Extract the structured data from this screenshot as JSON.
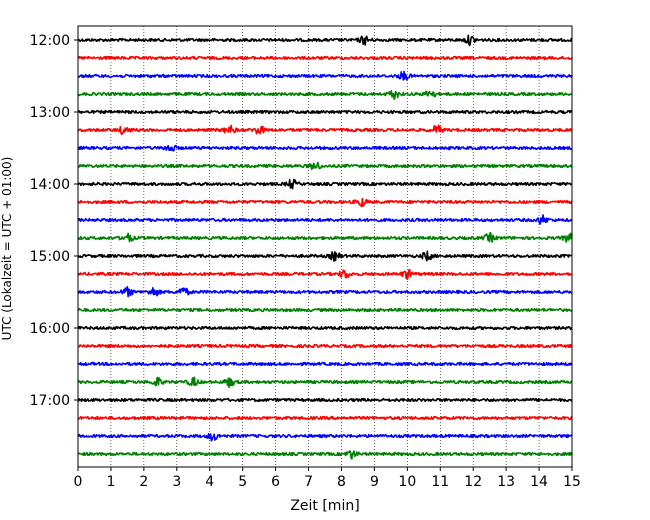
{
  "chart_data": {
    "type": "line",
    "title": "",
    "xlabel": "Zeit  [min]",
    "ylabel": "UTC (Lokalzeit = UTC + 01:00)",
    "xlim": [
      0,
      15
    ],
    "xticks": [
      0,
      1,
      2,
      3,
      4,
      5,
      6,
      7,
      8,
      9,
      10,
      11,
      12,
      13,
      14,
      15
    ],
    "x_gridlines": "dotted vertical at each minute",
    "y_tick_labels": [
      "12:00",
      "13:00",
      "14:00",
      "15:00",
      "16:00",
      "17:00"
    ],
    "trace_interval_minutes": 15,
    "color_cycle": [
      "#000000",
      "#ff0000",
      "#0000ff",
      "#008000"
    ],
    "traces": [
      {
        "start": "12:00",
        "color": "#000000",
        "events_min": [
          8.7,
          11.9
        ]
      },
      {
        "start": "12:15",
        "color": "#ff0000",
        "events_min": []
      },
      {
        "start": "12:30",
        "color": "#0000ff",
        "events_min": [
          9.9
        ]
      },
      {
        "start": "12:45",
        "color": "#008000",
        "events_min": [
          9.6,
          10.7
        ]
      },
      {
        "start": "13:00",
        "color": "#000000",
        "events_min": []
      },
      {
        "start": "13:15",
        "color": "#ff0000",
        "events_min": [
          1.4,
          4.6,
          5.5,
          10.9
        ]
      },
      {
        "start": "13:30",
        "color": "#0000ff",
        "events_min": [
          2.8
        ]
      },
      {
        "start": "13:45",
        "color": "#008000",
        "events_min": [
          7.2
        ]
      },
      {
        "start": "14:00",
        "color": "#000000",
        "events_min": [
          6.5
        ]
      },
      {
        "start": "14:15",
        "color": "#ff0000",
        "events_min": [
          8.6
        ]
      },
      {
        "start": "14:30",
        "color": "#0000ff",
        "events_min": [
          14.1
        ]
      },
      {
        "start": "14:45",
        "color": "#008000",
        "events_min": [
          1.5,
          12.5,
          14.9
        ]
      },
      {
        "start": "15:00",
        "color": "#000000",
        "events_min": [
          7.8,
          10.6
        ]
      },
      {
        "start": "15:15",
        "color": "#ff0000",
        "events_min": [
          8.1,
          10.0
        ]
      },
      {
        "start": "15:30",
        "color": "#0000ff",
        "events_min": [
          1.5,
          2.3,
          3.2
        ]
      },
      {
        "start": "15:45",
        "color": "#008000",
        "events_min": []
      },
      {
        "start": "16:00",
        "color": "#000000",
        "events_min": []
      },
      {
        "start": "16:15",
        "color": "#ff0000",
        "events_min": []
      },
      {
        "start": "16:30",
        "color": "#0000ff",
        "events_min": []
      },
      {
        "start": "16:45",
        "color": "#008000",
        "events_min": [
          2.4,
          3.5,
          4.6
        ]
      },
      {
        "start": "17:00",
        "color": "#000000",
        "events_min": []
      },
      {
        "start": "17:15",
        "color": "#ff0000",
        "events_min": []
      },
      {
        "start": "17:30",
        "color": "#0000ff",
        "events_min": [
          4.1
        ]
      },
      {
        "start": "17:45",
        "color": "#008000",
        "events_min": [
          8.3
        ]
      }
    ]
  }
}
